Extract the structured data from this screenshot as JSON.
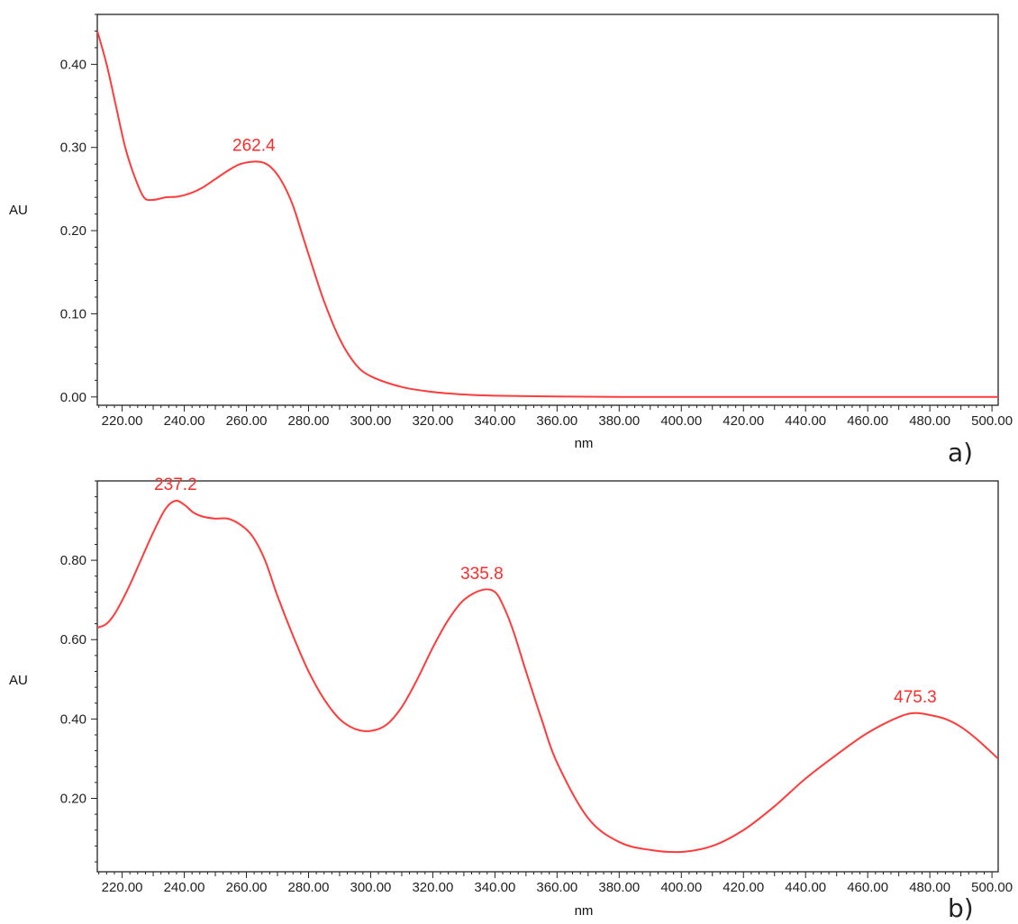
{
  "chart_data": [
    {
      "type": "line",
      "panel_label": "a)",
      "xlabel": "nm",
      "ylabel": "AU",
      "xlim": [
        212,
        502
      ],
      "ylim": [
        -0.01,
        0.46
      ],
      "x_ticks": [
        220,
        240,
        260,
        280,
        300,
        320,
        340,
        360,
        380,
        400,
        420,
        440,
        460,
        480,
        500
      ],
      "x_tick_labels": [
        "220.00",
        "240.00",
        "260.00",
        "280.00",
        "300.00",
        "320.00",
        "340.00",
        "360.00",
        "380.00",
        "400.00",
        "420.00",
        "440.00",
        "460.00",
        "480.00",
        "500.00"
      ],
      "y_ticks": [
        0.0,
        0.1,
        0.2,
        0.3,
        0.4
      ],
      "y_tick_labels": [
        "0.00",
        "0.10",
        "0.20",
        "0.30",
        "0.40"
      ],
      "line_color": "#ff3b3b",
      "label_color": "#ff2a2a",
      "series": [
        {
          "x": [
            212,
            215,
            218,
            221,
            224,
            227,
            230,
            234,
            238,
            242,
            246,
            250,
            254,
            258,
            262.4,
            266,
            269,
            272,
            275,
            278,
            281,
            285,
            290,
            295,
            300,
            310,
            320,
            330,
            340,
            360,
            380,
            400,
            450,
            502
          ],
          "y": [
            0.44,
            0.4,
            0.35,
            0.3,
            0.265,
            0.24,
            0.237,
            0.24,
            0.241,
            0.245,
            0.252,
            0.262,
            0.272,
            0.28,
            0.283,
            0.281,
            0.272,
            0.255,
            0.23,
            0.195,
            0.16,
            0.115,
            0.07,
            0.04,
            0.025,
            0.012,
            0.006,
            0.003,
            0.0015,
            0.0005,
            0.0,
            0.0,
            0.0,
            0.0
          ]
        }
      ],
      "annotations": [
        {
          "text": "262.4",
          "x": 262.4,
          "y": 0.283
        }
      ]
    },
    {
      "type": "line",
      "panel_label": "b)",
      "xlabel": "nm",
      "ylabel": "AU",
      "xlim": [
        212,
        502
      ],
      "ylim": [
        0.015,
        1.0
      ],
      "x_ticks": [
        220,
        240,
        260,
        280,
        300,
        320,
        340,
        360,
        380,
        400,
        420,
        440,
        460,
        480,
        500
      ],
      "x_tick_labels": [
        "220.00",
        "240.00",
        "260.00",
        "280.00",
        "300.00",
        "320.00",
        "340.00",
        "360.00",
        "380.00",
        "400.00",
        "420.00",
        "440.00",
        "460.00",
        "480.00",
        "500.00"
      ],
      "y_ticks": [
        0.2,
        0.4,
        0.6,
        0.8
      ],
      "y_tick_labels": [
        "0.20",
        "0.40",
        "0.60",
        "0.80"
      ],
      "line_color": "#ff3b3b",
      "label_color": "#ff2a2a",
      "series": [
        {
          "x": [
            212,
            215,
            218,
            222,
            226,
            230,
            234,
            237.2,
            240,
            243,
            246,
            250,
            254,
            258,
            262,
            266,
            270,
            275,
            280,
            285,
            290,
            295,
            300,
            305,
            310,
            315,
            320,
            325,
            330,
            335.8,
            340,
            343,
            346,
            350,
            355,
            360,
            370,
            380,
            390,
            400,
            410,
            420,
            430,
            440,
            450,
            460,
            470,
            475.3,
            480,
            485,
            490,
            495,
            502
          ],
          "y": [
            0.63,
            0.64,
            0.67,
            0.73,
            0.8,
            0.87,
            0.93,
            0.95,
            0.94,
            0.92,
            0.91,
            0.905,
            0.905,
            0.89,
            0.86,
            0.8,
            0.71,
            0.61,
            0.52,
            0.45,
            0.4,
            0.375,
            0.37,
            0.385,
            0.43,
            0.5,
            0.58,
            0.65,
            0.7,
            0.725,
            0.72,
            0.68,
            0.62,
            0.52,
            0.4,
            0.29,
            0.15,
            0.09,
            0.07,
            0.065,
            0.08,
            0.12,
            0.18,
            0.25,
            0.31,
            0.365,
            0.405,
            0.415,
            0.41,
            0.4,
            0.38,
            0.35,
            0.3
          ]
        }
      ],
      "annotations": [
        {
          "text": "237.2",
          "x": 237.2,
          "y": 0.95
        },
        {
          "text": "335.8",
          "x": 335.8,
          "y": 0.725
        },
        {
          "text": "475.3",
          "x": 475.3,
          "y": 0.415
        }
      ]
    }
  ]
}
